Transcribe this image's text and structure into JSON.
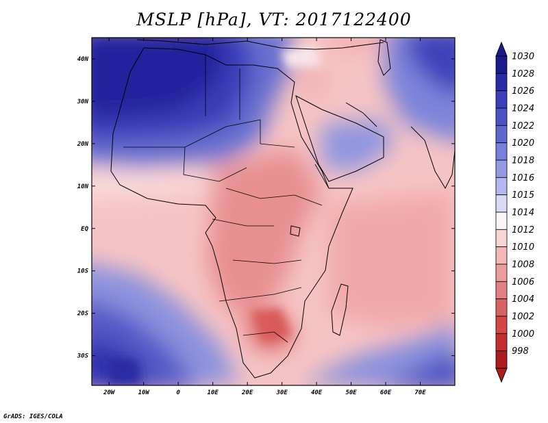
{
  "title": "MSLP [hPa], VT: 2017122400",
  "credit": "GrADS: IGES/COLA",
  "map": {
    "variable": "MSLP",
    "units": "hPa",
    "valid_time": "2017122400",
    "lon_range": [
      -25,
      80
    ],
    "lat_range": [
      -37,
      45
    ],
    "lat_ticks": [
      {
        "value": 40,
        "label": "40N"
      },
      {
        "value": 30,
        "label": "30N"
      },
      {
        "value": 20,
        "label": "20N"
      },
      {
        "value": 10,
        "label": "10N"
      },
      {
        "value": 0,
        "label": "EQ"
      },
      {
        "value": -10,
        "label": "10S"
      },
      {
        "value": -20,
        "label": "20S"
      },
      {
        "value": -30,
        "label": "30S"
      }
    ],
    "lon_ticks": [
      {
        "value": -20,
        "label": "20W"
      },
      {
        "value": -10,
        "label": "10W"
      },
      {
        "value": 0,
        "label": "0"
      },
      {
        "value": 10,
        "label": "10E"
      },
      {
        "value": 20,
        "label": "20E"
      },
      {
        "value": 30,
        "label": "30E"
      },
      {
        "value": 40,
        "label": "40E"
      },
      {
        "value": 50,
        "label": "50E"
      },
      {
        "value": 60,
        "label": "60E"
      },
      {
        "value": 70,
        "label": "70E"
      }
    ]
  },
  "colorbar": {
    "levels": [
      {
        "label": "1030",
        "color": "#1c1a8f"
      },
      {
        "label": "1028",
        "color": "#2a2ba8"
      },
      {
        "label": "1026",
        "color": "#3b3fb9"
      },
      {
        "label": "1024",
        "color": "#4c52c6"
      },
      {
        "label": "1022",
        "color": "#6068cf"
      },
      {
        "label": "1020",
        "color": "#7880d9"
      },
      {
        "label": "1018",
        "color": "#9399e2"
      },
      {
        "label": "1016",
        "color": "#b4b8ec"
      },
      {
        "label": "1015",
        "color": "#d7d9f5"
      },
      {
        "label": "1014",
        "color": "#fbf4f4"
      },
      {
        "label": "1012",
        "color": "#f9d6d6"
      },
      {
        "label": "1010",
        "color": "#f4b8b8"
      },
      {
        "label": "1008",
        "color": "#ec9c9c"
      },
      {
        "label": "1006",
        "color": "#e37f80"
      },
      {
        "label": "1004",
        "color": "#db6264"
      },
      {
        "label": "1002",
        "color": "#d24749"
      },
      {
        "label": "1000",
        "color": "#c32f31"
      },
      {
        "label": "998",
        "color": "#ad1c1e"
      }
    ]
  }
}
